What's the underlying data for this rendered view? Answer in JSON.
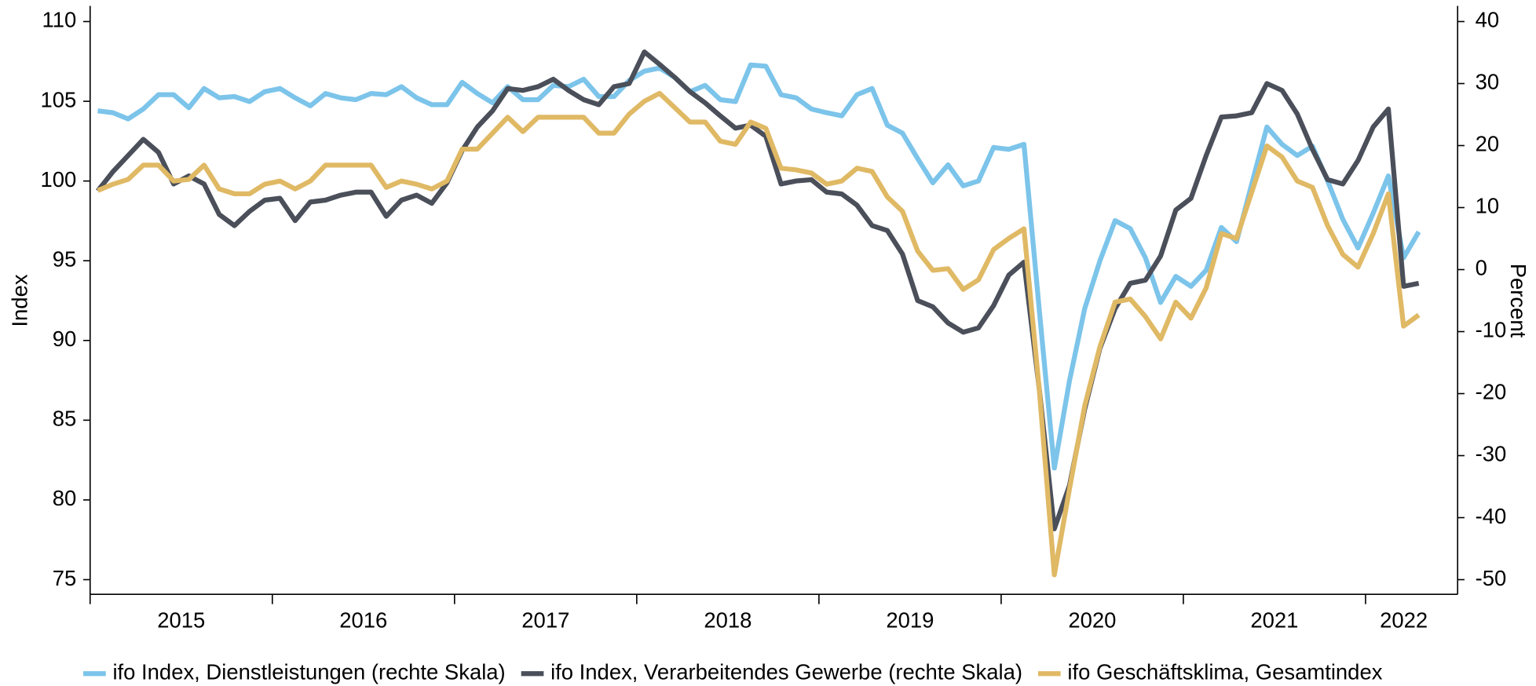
{
  "chart_data": {
    "type": "line",
    "y_label": "Index",
    "y2_label": "Percent",
    "categories": [
      null,
      null,
      null,
      null,
      null,
      null,
      "2015",
      null,
      null,
      null,
      null,
      null,
      null,
      null,
      null,
      null,
      null,
      null,
      "2016",
      null,
      null,
      null,
      null,
      null,
      null,
      null,
      null,
      null,
      null,
      null,
      "2017",
      null,
      null,
      null,
      null,
      null,
      null,
      null,
      null,
      null,
      null,
      null,
      "2018",
      null,
      null,
      null,
      null,
      null,
      null,
      null,
      null,
      null,
      null,
      null,
      "2019",
      null,
      null,
      null,
      null,
      null,
      null,
      null,
      null,
      null,
      null,
      null,
      "2020",
      null,
      null,
      null,
      null,
      null,
      null,
      null,
      null,
      null,
      null,
      null,
      "2021",
      null,
      null,
      null,
      null,
      null,
      null,
      null,
      "2022",
      null
    ],
    "ylim": [
      75,
      110
    ],
    "yticks": [
      75,
      80,
      85,
      90,
      95,
      100,
      105,
      110
    ],
    "y2lim": [
      -50,
      40
    ],
    "y2ticks": [
      -50,
      -40,
      -30,
      -20,
      -10,
      0,
      10,
      20,
      30,
      40
    ],
    "legend": "bottom",
    "series": [
      {
        "name": "ifo Index, Dienstleistungen (rechte Skala)",
        "color": "#7cc4ea",
        "axis": "y2",
        "values": [
          25.6,
          25.3,
          24.3,
          25.9,
          28.2,
          28.2,
          26.1,
          29.2,
          27.7,
          27.9,
          27.1,
          28.7,
          29.2,
          27.7,
          26.4,
          28.4,
          27.7,
          27.4,
          28.4,
          28.2,
          29.5,
          27.7,
          26.6,
          26.6,
          30.2,
          28.4,
          26.9,
          29.5,
          27.4,
          27.4,
          29.7,
          29.5,
          30.7,
          27.9,
          27.9,
          30.5,
          32.0,
          32.5,
          31.0,
          28.7,
          29.7,
          27.4,
          27.1,
          33.0,
          32.8,
          28.2,
          27.7,
          25.9,
          25.3,
          24.8,
          28.2,
          29.2,
          23.3,
          22.0,
          17.9,
          14.0,
          16.9,
          13.5,
          14.3,
          19.7,
          19.4,
          20.2,
          -6.3,
          -32.0,
          -17.9,
          -6.3,
          1.4,
          7.9,
          6.6,
          1.9,
          -5.3,
          -1.1,
          -2.7,
          -0.1,
          6.8,
          4.5,
          13.8,
          23.0,
          20.2,
          18.4,
          19.9,
          14.3,
          8.1,
          3.5,
          9.1,
          15.1,
          1.9,
          6.1
        ]
      },
      {
        "name": "ifo Index, Verarbeitendes Gewerbe (rechte Skala)",
        "color": "#4a4f5a",
        "axis": "y2",
        "values": [
          12.7,
          15.8,
          18.4,
          21.0,
          18.9,
          13.8,
          15.1,
          13.8,
          8.9,
          7.1,
          9.4,
          11.2,
          11.5,
          7.9,
          10.9,
          11.2,
          12.0,
          12.5,
          12.5,
          8.6,
          11.2,
          12.0,
          10.7,
          14.0,
          19.2,
          23.0,
          25.6,
          29.2,
          28.9,
          29.5,
          30.7,
          28.9,
          27.4,
          26.6,
          29.5,
          30.0,
          35.1,
          33.1,
          31.0,
          28.7,
          26.9,
          24.8,
          22.8,
          23.3,
          21.5,
          13.8,
          14.3,
          14.5,
          12.5,
          12.2,
          10.4,
          7.1,
          6.3,
          2.5,
          -5.0,
          -6.0,
          -8.6,
          -10.1,
          -9.4,
          -5.8,
          -0.9,
          1.2,
          -19.1,
          -41.8,
          -34.8,
          -22.5,
          -12.7,
          -6.3,
          -2.2,
          -1.7,
          2.2,
          9.6,
          11.5,
          18.4,
          24.6,
          24.8,
          25.3,
          30.0,
          28.9,
          25.1,
          19.4,
          14.5,
          13.8,
          17.6,
          23.0,
          25.9,
          -2.7,
          -2.2
        ]
      },
      {
        "name": "ifo Geschäftsklima, Gesamtindex",
        "color": "#e0b965",
        "axis": "y",
        "values": [
          99.4,
          99.8,
          100.1,
          101.0,
          101.0,
          100.0,
          100.1,
          101.0,
          99.5,
          99.2,
          99.2,
          99.8,
          100.0,
          99.5,
          100.0,
          101.0,
          101.0,
          101.0,
          101.0,
          99.6,
          100.0,
          99.8,
          99.5,
          100.0,
          102.0,
          102.0,
          103.0,
          104.0,
          103.1,
          104.0,
          104.0,
          104.0,
          104.0,
          103.0,
          103.0,
          104.2,
          105.0,
          105.5,
          104.6,
          103.7,
          103.7,
          102.5,
          102.3,
          103.7,
          103.3,
          100.8,
          100.7,
          100.5,
          99.8,
          100.0,
          100.8,
          100.6,
          99.0,
          98.1,
          95.6,
          94.4,
          94.5,
          93.2,
          93.8,
          95.7,
          96.4,
          97.0,
          87.0,
          75.3,
          80.7,
          85.9,
          89.6,
          92.4,
          92.6,
          91.5,
          90.1,
          92.4,
          91.4,
          93.3,
          96.7,
          96.4,
          99.3,
          102.2,
          101.5,
          100.0,
          99.6,
          97.2,
          95.4,
          94.6,
          96.7,
          99.2,
          90.9,
          91.6
        ]
      }
    ]
  }
}
